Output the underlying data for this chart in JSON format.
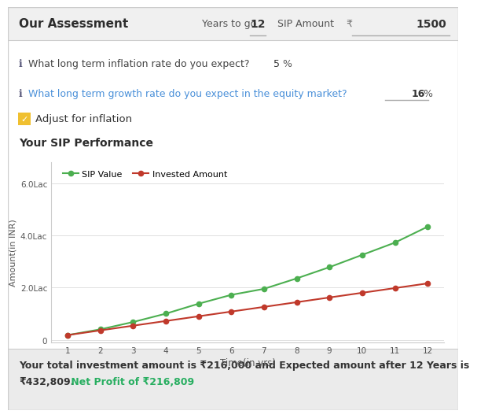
{
  "title_text": "Our Assessment",
  "years_to_go_label": "Years to go",
  "years_to_go": "12",
  "sip_amount_label": "SIP Amount",
  "rupee": "₹",
  "sip_amount": "1500",
  "inflation_q": "What long term inflation rate do you expect?",
  "inflation_val": "5",
  "inflation_pct": "%",
  "growth_q": "What long term growth rate do you expect in the equity market?",
  "growth_val": "16",
  "growth_pct": "%",
  "checkbox_label": "Adjust for inflation",
  "chart_title": "Your SIP Performance",
  "time_years": [
    1,
    2,
    3,
    4,
    5,
    6,
    7,
    8,
    9,
    10,
    11,
    12
  ],
  "sip_values": [
    0.18,
    0.4,
    0.68,
    1.0,
    1.38,
    1.72,
    1.95,
    2.35,
    2.78,
    3.25,
    3.72,
    4.33
  ],
  "invested_amounts": [
    0.18,
    0.36,
    0.54,
    0.72,
    0.9,
    1.08,
    1.26,
    1.44,
    1.62,
    1.8,
    1.98,
    2.16
  ],
  "ylabel": "Amount(in INR)",
  "xlabel": "Time(in yrs)",
  "ytick_labels": [
    "0",
    "2.0Lac",
    "4.0Lac",
    "6.0Lac"
  ],
  "ytick_values": [
    0,
    2.0,
    4.0,
    6.0
  ],
  "sip_color": "#4caf50",
  "invested_color": "#c0392b",
  "header_bg": "#f0f0f0",
  "body_bg": "#ffffff",
  "footer_bg": "#ebebeb",
  "footer_text1_color": "#333333",
  "footer_profit_color": "#27ae60",
  "grid_color": "#e0e0e0",
  "border_color": "#cccccc",
  "legend_sip": "SIP Value",
  "legend_invested": "Invested Amount",
  "footer_line1": "Your total investment amount is ₹216,000 and Expected amount after 12 Years is",
  "footer_line2_black": "₹432,809.",
  "footer_line2_green": " Net Profit of ₹216,809"
}
